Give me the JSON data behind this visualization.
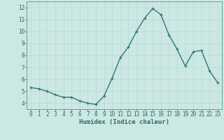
{
  "x": [
    0,
    1,
    2,
    3,
    4,
    5,
    6,
    7,
    8,
    9,
    10,
    11,
    12,
    13,
    14,
    15,
    16,
    17,
    18,
    19,
    20,
    21,
    22,
    23
  ],
  "y": [
    5.3,
    5.2,
    5.0,
    4.7,
    4.5,
    4.5,
    4.2,
    4.0,
    3.9,
    4.6,
    6.1,
    7.8,
    8.7,
    10.0,
    11.1,
    11.9,
    11.4,
    9.7,
    8.5,
    7.1,
    8.3,
    8.4,
    6.7,
    5.7
  ],
  "xlabel": "Humidex (Indice chaleur)",
  "xlim": [
    -0.5,
    23.5
  ],
  "ylim": [
    3.5,
    12.5
  ],
  "yticks": [
    4,
    5,
    6,
    7,
    8,
    9,
    10,
    11,
    12
  ],
  "xticks": [
    0,
    1,
    2,
    3,
    4,
    5,
    6,
    7,
    8,
    9,
    10,
    11,
    12,
    13,
    14,
    15,
    16,
    17,
    18,
    19,
    20,
    21,
    22,
    23
  ],
  "line_color": "#2d7a6e",
  "marker": "+",
  "bg_color": "#cce8e4",
  "grid_color": "#b8d8d4",
  "axis_bg": "#cce8e4",
  "xlabel_fontsize": 6.5,
  "tick_fontsize": 5.5,
  "line_width": 1.0,
  "marker_size": 3.5,
  "marker_edge_width": 0.9
}
